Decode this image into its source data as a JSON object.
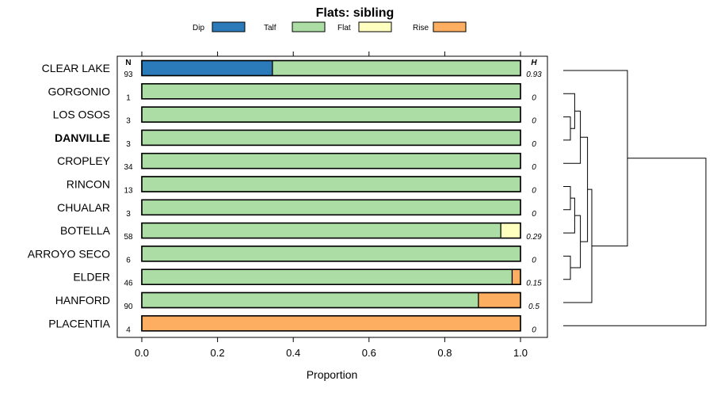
{
  "chart_data": {
    "type": "bar",
    "stacked": true,
    "orientation": "horizontal",
    "title": "Flats: sibling",
    "xlabel": "Proportion",
    "ylabel": "",
    "xlim": [
      0,
      1
    ],
    "xticks": [
      "0.0",
      "0.2",
      "0.4",
      "0.6",
      "0.8",
      "1.0"
    ],
    "xtick_values": [
      0,
      0.2,
      0.4,
      0.6,
      0.8,
      1.0
    ],
    "legend_position": "top",
    "n_header": "N",
    "h_header": "H",
    "bold_category": "DANVILLE",
    "categories": [
      "CLEAR LAKE",
      "GORGONIO",
      "LOS OSOS",
      "DANVILLE",
      "CROPLEY",
      "RINCON",
      "CHUALAR",
      "BOTELLA",
      "ARROYO SECO",
      "ELDER",
      "HANFORD",
      "PLACENTIA"
    ],
    "n": [
      "93",
      "1",
      "3",
      "3",
      "34",
      "13",
      "3",
      "58",
      "6",
      "46",
      "90",
      "4"
    ],
    "h": [
      "0.93",
      "0",
      "0",
      "0",
      "0",
      "0",
      "0",
      "0.29",
      "0",
      "0.15",
      "0.5",
      "0"
    ],
    "series": [
      {
        "name": "Dip",
        "color": "#2b7bba",
        "values": [
          0.345,
          0,
          0,
          0,
          0,
          0,
          0,
          0,
          0,
          0,
          0,
          0
        ]
      },
      {
        "name": "Talf",
        "color": "#abdda4",
        "values": [
          0.655,
          1,
          1,
          1,
          1,
          1,
          1,
          0.948,
          1,
          0.978,
          0.889,
          0
        ]
      },
      {
        "name": "Flat",
        "color": "#ffffbf",
        "values": [
          0,
          0,
          0,
          0,
          0,
          0,
          0,
          0.052,
          0,
          0,
          0,
          0
        ]
      },
      {
        "name": "Rise",
        "color": "#fdae61",
        "values": [
          0,
          0,
          0,
          0,
          0,
          0,
          0,
          0,
          0,
          0.022,
          0.111,
          1
        ]
      }
    ],
    "dendrogram": {
      "leaves": [
        "CLEAR LAKE",
        "GORGONIO",
        "LOS OSOS",
        "DANVILLE",
        "CROPLEY",
        "RINCON",
        "CHUALAR",
        "BOTELLA",
        "ARROYO SECO",
        "ELDER",
        "HANFORD",
        "PLACENTIA"
      ],
      "merges": [
        {
          "a": "L2",
          "b": "L3",
          "height": 0.05
        },
        {
          "a": "M0",
          "b": "L1",
          "height": 0.08
        },
        {
          "a": "M1",
          "b": "L4",
          "height": 0.12
        },
        {
          "a": "L5",
          "b": "L6",
          "height": 0.05
        },
        {
          "a": "M3",
          "b": "L7",
          "height": 0.08
        },
        {
          "a": "L8",
          "b": "L9",
          "height": 0.05
        },
        {
          "a": "M4",
          "b": "M5",
          "height": 0.12
        },
        {
          "a": "M2",
          "b": "M6",
          "height": 0.17
        },
        {
          "a": "M7",
          "b": "L10",
          "height": 0.2
        },
        {
          "a": "L0",
          "b": "M8",
          "height": 0.45
        },
        {
          "a": "M9",
          "b": "L11",
          "height": 1.0
        }
      ]
    }
  }
}
